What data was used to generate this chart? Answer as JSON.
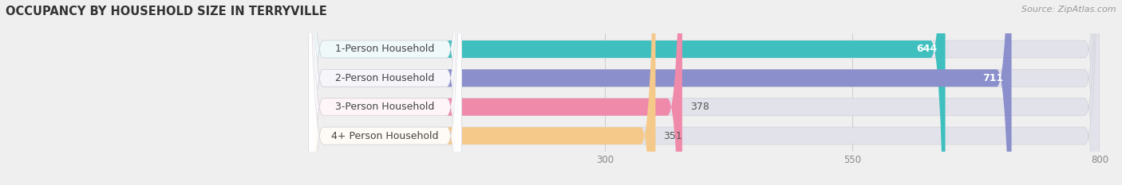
{
  "title": "OCCUPANCY BY HOUSEHOLD SIZE IN TERRYVILLE",
  "source": "Source: ZipAtlas.com",
  "categories": [
    "1-Person Household",
    "2-Person Household",
    "3-Person Household",
    "4+ Person Household"
  ],
  "values": [
    644,
    711,
    378,
    351
  ],
  "bar_colors": [
    "#40bfbf",
    "#8b8fcc",
    "#f08aaa",
    "#f5c98a"
  ],
  "label_colors": [
    "white",
    "white",
    "white",
    "white"
  ],
  "value_inside": [
    true,
    true,
    false,
    false
  ],
  "value_color_inside": [
    "white",
    "white",
    "#555555",
    "#555555"
  ],
  "xlim_min": -170,
  "xlim_max": 800,
  "data_max": 800,
  "xticks": [
    300,
    550,
    800
  ],
  "background_color": "#efefef",
  "bar_bg_color": "#e2e2ea",
  "title_fontsize": 10.5,
  "source_fontsize": 8,
  "bar_label_fontsize": 9,
  "category_fontsize": 9,
  "bar_height": 0.6,
  "rounding_size": 15
}
